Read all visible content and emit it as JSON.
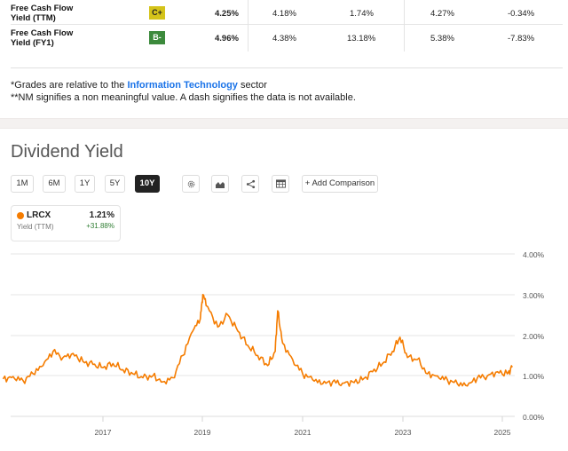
{
  "table": {
    "rows": [
      {
        "label_line1": "Free Cash Flow",
        "label_line2": "Yield (TTM)",
        "grade": "C+",
        "grade_color": "#d4c31a",
        "values": [
          "4.25%",
          "4.18%",
          "1.74%",
          "4.27%",
          "-0.34%"
        ]
      },
      {
        "label_line1": "Free Cash Flow",
        "label_line2": "Yield (FY1)",
        "grade": "B-",
        "grade_color": "#3c8a3c",
        "values": [
          "4.96%",
          "4.38%",
          "13.18%",
          "5.38%",
          "-7.83%"
        ]
      }
    ]
  },
  "notes": {
    "line1_prefix": "*Grades are relative to the ",
    "line1_link": "Information Technology",
    "line1_suffix": " sector",
    "line2": "**NM signifies a non meaningful value. A dash signifies the data is not available."
  },
  "section": {
    "title": "Dividend Yield"
  },
  "toolbar": {
    "ranges": [
      {
        "label": "1M",
        "active": false
      },
      {
        "label": "6M",
        "active": false
      },
      {
        "label": "1Y",
        "active": false
      },
      {
        "label": "5Y",
        "active": false
      },
      {
        "label": "10Y",
        "active": true
      }
    ],
    "icons": [
      "gear-icon",
      "chart-type-icon",
      "share-icon",
      "table-icon"
    ],
    "add_comparison": "+ Add Comparison"
  },
  "legend": {
    "ticker": "LRCX",
    "metric": "Yield (TTM)",
    "value": "1.21%",
    "change": "+31.88%",
    "color": "#f57c00"
  },
  "chart_data": {
    "type": "line",
    "title": "Dividend Yield",
    "series": [
      {
        "name": "LRCX Yield (TTM)",
        "color": "#f57c00",
        "x": [
          2015.0,
          2015.2,
          2015.4,
          2015.6,
          2015.8,
          2016.0,
          2016.2,
          2016.4,
          2016.6,
          2016.8,
          2017.0,
          2017.2,
          2017.4,
          2017.6,
          2017.8,
          2018.0,
          2018.2,
          2018.4,
          2018.6,
          2018.8,
          2018.95,
          2019.0,
          2019.1,
          2019.3,
          2019.5,
          2019.7,
          2019.9,
          2020.1,
          2020.3,
          2020.45,
          2020.5,
          2020.6,
          2020.8,
          2021.0,
          2021.2,
          2021.4,
          2021.6,
          2021.8,
          2022.0,
          2022.2,
          2022.4,
          2022.6,
          2022.8,
          2022.95,
          2023.1,
          2023.3,
          2023.5,
          2023.7,
          2023.9,
          2024.1,
          2024.3,
          2024.5,
          2024.7,
          2024.9,
          2025.1,
          2025.2
        ],
        "values": [
          0.92,
          0.98,
          0.88,
          1.05,
          1.25,
          1.6,
          1.45,
          1.55,
          1.35,
          1.28,
          1.2,
          1.3,
          1.15,
          1.05,
          0.95,
          1.0,
          0.85,
          0.95,
          1.5,
          2.1,
          2.4,
          3.0,
          2.7,
          2.2,
          2.5,
          2.1,
          1.75,
          1.5,
          1.25,
          1.6,
          2.6,
          1.8,
          1.4,
          1.05,
          0.9,
          0.8,
          0.85,
          0.82,
          0.85,
          0.9,
          1.1,
          1.3,
          1.6,
          1.95,
          1.45,
          1.4,
          1.05,
          1.0,
          0.9,
          0.8,
          0.75,
          0.95,
          1.0,
          1.1,
          1.05,
          1.21
        ]
      }
    ],
    "xlabel": "",
    "ylabel": "",
    "x_ticks": [
      "2017",
      "2019",
      "2021",
      "2023",
      "2025"
    ],
    "y_ticks": [
      "0.00%",
      "1.00%",
      "2.00%",
      "3.00%",
      "4.00%"
    ],
    "ylim": [
      0,
      4
    ],
    "xlim": [
      2015.0,
      2025.2
    ],
    "grid": true,
    "legend_position": "top-left"
  }
}
